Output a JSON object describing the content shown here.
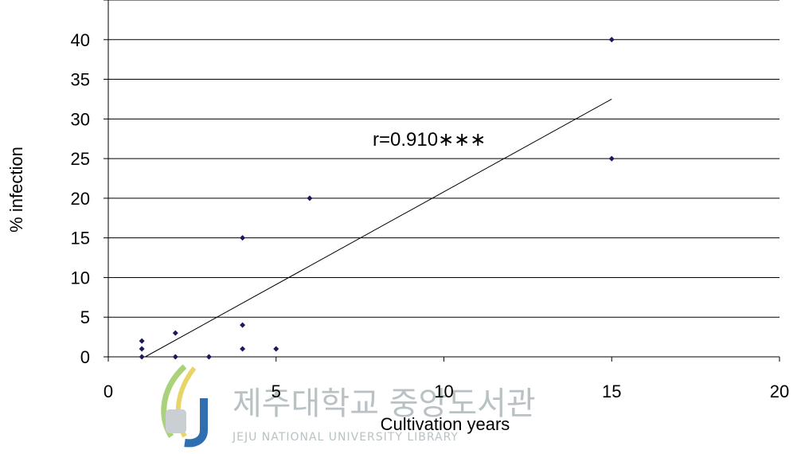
{
  "chart_data": {
    "type": "scatter",
    "xlabel": "Cultivation years",
    "ylabel": "% infection",
    "xlim": [
      0,
      20
    ],
    "ylim": [
      0,
      45
    ],
    "x_ticks": [
      0,
      5,
      10,
      15,
      20
    ],
    "y_ticks": [
      0,
      5,
      10,
      15,
      20,
      25,
      30,
      35,
      40
    ],
    "grid": "horizontal",
    "point_color": "#1a1a5c",
    "points": [
      {
        "x": 1,
        "y": 0
      },
      {
        "x": 1,
        "y": 1
      },
      {
        "x": 1,
        "y": 2
      },
      {
        "x": 2,
        "y": 0
      },
      {
        "x": 2,
        "y": 3
      },
      {
        "x": 3,
        "y": 0
      },
      {
        "x": 4,
        "y": 1
      },
      {
        "x": 4,
        "y": 4
      },
      {
        "x": 4,
        "y": 15
      },
      {
        "x": 5,
        "y": 1
      },
      {
        "x": 6,
        "y": 20
      },
      {
        "x": 15,
        "y": 25
      },
      {
        "x": 15,
        "y": 40
      }
    ],
    "trendline": {
      "x": [
        1.1,
        15
      ],
      "y": [
        0,
        32.5
      ]
    },
    "annotation": "r=0.910∗∗∗"
  },
  "watermark": {
    "korean": "제주대학교 중앙도서관",
    "english": "JEJU NATIONAL UNIVERSITY LIBRARY",
    "logo_icon": "jeju-university-logo"
  }
}
